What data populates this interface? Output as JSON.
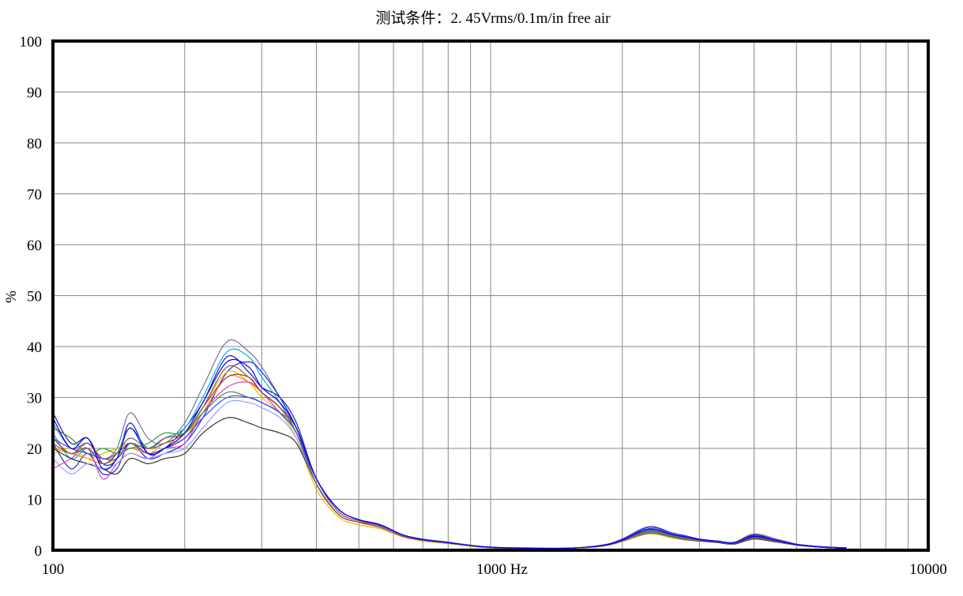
{
  "chart_data": {
    "type": "line",
    "title": "测试条件：2. 45Vrms/0.1m/in free air",
    "xlabel": "",
    "ylabel": "%",
    "x_scale": "log",
    "xlim": [
      100,
      10000
    ],
    "ylim": [
      0,
      100
    ],
    "grid": true,
    "legend": "none",
    "x_ticks": [
      {
        "value": 100,
        "label": "100"
      },
      {
        "value": 1000,
        "label": "1000 Hz"
      },
      {
        "value": 10000,
        "label": "10000"
      }
    ],
    "y_ticks": [
      0,
      10,
      20,
      30,
      40,
      50,
      60,
      70,
      80,
      90,
      100
    ],
    "x": [
      100,
      110,
      120,
      130,
      140,
      150,
      165,
      180,
      200,
      220,
      250,
      280,
      300,
      330,
      360,
      400,
      450,
      500,
      560,
      630,
      700,
      800,
      900,
      1000,
      1200,
      1500,
      1800,
      2000,
      2300,
      2600,
      2800,
      3000,
      3300,
      3600,
      4000,
      4500,
      5000,
      5500,
      6000,
      6500
    ],
    "series": [
      {
        "color": "#1a1aa0",
        "values": [
          27,
          21,
          22,
          17,
          18,
          25,
          19,
          20,
          24,
          29,
          38,
          35,
          32,
          30,
          25,
          14,
          8,
          6,
          5,
          3,
          2,
          1.5,
          0.8,
          0.5,
          0.4,
          0.4,
          0.9,
          2,
          4,
          3,
          2.5,
          2,
          1.8,
          1.5,
          3,
          2,
          1.2,
          0.8,
          0.6,
          0.5
        ]
      },
      {
        "color": "#7070a8",
        "values": [
          25,
          20,
          21,
          18,
          20,
          27,
          22,
          21,
          25,
          32,
          41,
          39,
          36,
          30,
          24,
          13,
          7,
          5.5,
          5,
          3,
          2.2,
          1.6,
          1,
          0.6,
          0.5,
          0.4,
          1,
          2,
          4.5,
          3.2,
          2.6,
          2.2,
          1.8,
          1.6,
          3.2,
          2.2,
          1.2,
          0.8,
          0.6,
          0.5
        ]
      },
      {
        "color": "#00b4d0",
        "values": [
          23,
          18,
          20,
          17,
          19,
          24,
          20,
          22,
          24,
          30,
          39,
          38,
          34,
          29,
          23,
          13,
          7,
          5.5,
          4.5,
          2.8,
          2,
          1.4,
          0.9,
          0.6,
          0.4,
          0.4,
          0.9,
          1.9,
          3.8,
          2.8,
          2.3,
          2,
          1.6,
          1.4,
          2.6,
          1.8,
          1.1,
          0.7,
          0.5,
          0.4
        ]
      },
      {
        "color": "#2a2ad0",
        "values": [
          21,
          16,
          19,
          15,
          16,
          21,
          18,
          19,
          21,
          26,
          35,
          37,
          35,
          30,
          24,
          14,
          8,
          6,
          5,
          3,
          2,
          1.5,
          0.9,
          0.6,
          0.4,
          0.4,
          1,
          2.2,
          4.6,
          3.4,
          2.8,
          2.2,
          1.8,
          1.4,
          2.8,
          2,
          1.2,
          0.8,
          0.6,
          0.5
        ]
      },
      {
        "color": "#ff7f0e",
        "values": [
          20,
          19,
          18,
          17,
          18,
          20,
          19,
          20,
          22,
          27,
          34,
          33,
          31,
          28,
          23,
          13,
          7,
          5.5,
          4.5,
          2.8,
          2,
          1.4,
          0.8,
          0.5,
          0.4,
          0.4,
          0.8,
          1.8,
          3.4,
          2.6,
          2.2,
          1.9,
          1.6,
          1.3,
          2.4,
          1.7,
          1,
          0.7,
          0.5,
          0.4
        ]
      },
      {
        "color": "#e0c000",
        "values": [
          19,
          20,
          18,
          19,
          20,
          21,
          19,
          21,
          22,
          28,
          35,
          33,
          30,
          27,
          22,
          12,
          6.5,
          5,
          4.2,
          2.6,
          1.8,
          1.3,
          0.8,
          0.5,
          0.4,
          0.4,
          0.8,
          1.7,
          3.2,
          2.4,
          2,
          1.8,
          1.5,
          1.2,
          2.2,
          1.6,
          1,
          0.7,
          0.5,
          0.4
        ]
      },
      {
        "color": "#e040c0",
        "values": [
          16,
          18,
          20,
          14,
          17,
          19,
          18,
          20,
          21,
          27,
          32,
          33,
          31,
          27,
          23,
          13,
          7,
          5.5,
          4.5,
          2.7,
          1.9,
          1.4,
          0.9,
          0.5,
          0.4,
          0.4,
          0.9,
          1.9,
          3.6,
          2.7,
          2.4,
          2,
          1.6,
          1.3,
          2.5,
          1.8,
          1.1,
          0.7,
          0.5,
          0.4
        ]
      },
      {
        "color": "#aa3a3a",
        "values": [
          22,
          19,
          21,
          18,
          19,
          21,
          20,
          22,
          23,
          28,
          34,
          34,
          31,
          28,
          24,
          14,
          7.5,
          5.8,
          4.8,
          3,
          2.1,
          1.5,
          0.9,
          0.6,
          0.4,
          0.4,
          0.9,
          2,
          3.9,
          3,
          2.6,
          2.1,
          1.7,
          1.4,
          2.7,
          1.9,
          1.1,
          0.7,
          0.5,
          0.4
        ]
      },
      {
        "color": "#2ca02c",
        "values": [
          24,
          22,
          19,
          20,
          19,
          20,
          21,
          23,
          23,
          27,
          31,
          30,
          29,
          27,
          24,
          14,
          8,
          6,
          5,
          3,
          2.2,
          1.5,
          0.9,
          0.6,
          0.4,
          0.4,
          0.9,
          2,
          3.8,
          2.9,
          2.4,
          2,
          1.7,
          1.3,
          2.5,
          1.8,
          1.1,
          0.7,
          0.5,
          0.4
        ]
      },
      {
        "color": "#333333",
        "values": [
          20,
          18,
          17,
          16,
          15,
          18,
          17,
          18,
          19,
          23,
          26,
          25,
          24,
          23,
          21,
          13,
          7,
          5.5,
          4.6,
          2.8,
          2,
          1.4,
          0.9,
          0.5,
          0.4,
          0.4,
          0.8,
          1.8,
          3.4,
          2.6,
          2.1,
          1.8,
          1.5,
          1.2,
          2.2,
          1.6,
          1,
          0.7,
          0.5,
          0.4
        ]
      },
      {
        "color": "#8fa0ff",
        "values": [
          18,
          15,
          17,
          16,
          17,
          19,
          18,
          19,
          20,
          24,
          29,
          29,
          28,
          26,
          22,
          13,
          7,
          5.5,
          4.6,
          2.8,
          2,
          1.4,
          0.9,
          0.5,
          0.4,
          0.4,
          0.8,
          1.8,
          3.5,
          2.7,
          2.2,
          1.9,
          1.6,
          1.3,
          2.4,
          1.7,
          1,
          0.7,
          0.5,
          0.4
        ]
      },
      {
        "color": "#4040ff",
        "values": [
          22,
          20,
          19,
          18,
          18,
          21,
          19,
          20,
          22,
          26,
          30,
          30,
          29,
          27,
          23,
          14,
          8,
          6,
          5,
          3,
          2.1,
          1.5,
          0.9,
          0.6,
          0.4,
          0.4,
          0.9,
          2,
          4,
          3,
          2.5,
          2.1,
          1.7,
          1.4,
          2.6,
          1.9,
          1.1,
          0.7,
          0.5,
          0.4
        ]
      },
      {
        "color": "#8c564b",
        "values": [
          21,
          19,
          20,
          17,
          19,
          22,
          20,
          21,
          23,
          28,
          36,
          34,
          31,
          28,
          23,
          13,
          7,
          5.5,
          4.5,
          2.8,
          2,
          1.4,
          0.9,
          0.5,
          0.4,
          0.4,
          0.8,
          1.8,
          3.6,
          2.7,
          2.3,
          1.9,
          1.6,
          1.3,
          2.4,
          1.7,
          1,
          0.7,
          0.5,
          0.4
        ]
      },
      {
        "color": "#0000ff",
        "values": [
          26,
          20,
          22,
          16,
          18,
          24,
          19,
          20,
          23,
          29,
          37,
          36,
          32,
          29,
          24,
          14,
          8,
          6,
          5,
          3,
          2.1,
          1.5,
          0.9,
          0.6,
          0.4,
          0.4,
          0.9,
          2,
          4.2,
          3.1,
          2.6,
          2.1,
          1.7,
          1.4,
          2.7,
          1.9,
          1.1,
          0.7,
          0.5,
          0.4
        ]
      }
    ]
  }
}
